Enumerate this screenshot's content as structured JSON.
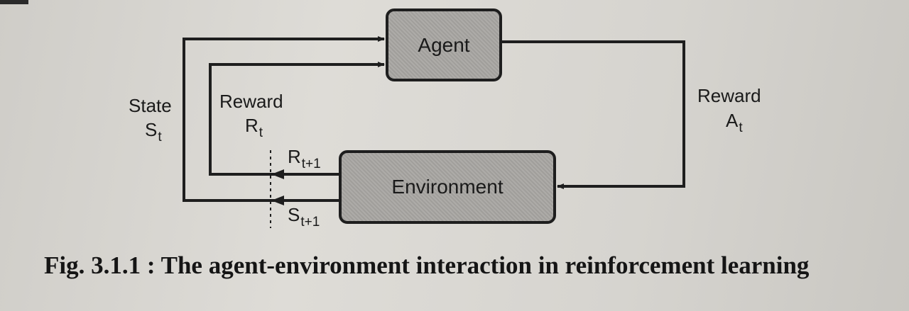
{
  "agent": {
    "label": "Agent"
  },
  "environment": {
    "label": "Environment"
  },
  "state_left": {
    "title": "State",
    "symbol": "S",
    "subscript": "t"
  },
  "reward_left": {
    "title": "Reward",
    "symbol": "R",
    "subscript": "t"
  },
  "reward_next": {
    "symbol": "R",
    "subscript": "t+1"
  },
  "state_next": {
    "symbol": "S",
    "subscript": "t+1"
  },
  "action_right": {
    "title": "Reward",
    "symbol": "A",
    "subscript": "t"
  },
  "caption": "Fig. 3.1.1 : The agent-environment interaction in reinforcement learning",
  "colors": {
    "line": "#1e1e1e",
    "box_fill": "#a9a7a3",
    "background": "#d9d7d2"
  }
}
